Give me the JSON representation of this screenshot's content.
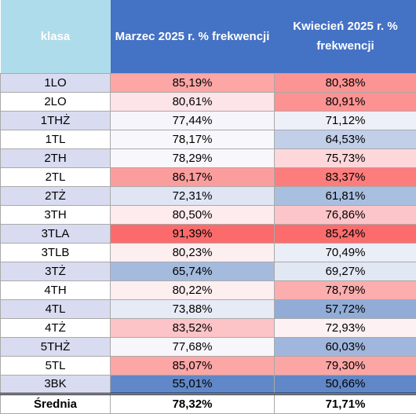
{
  "table": {
    "headers": {
      "klasa": "klasa",
      "marzec": "Marzec 2025 r. % frekwencji",
      "kwiecien": "Kwiecień 2025 r. % frekwencji"
    },
    "rows": [
      {
        "klasa": "1LO",
        "marzec": "85,19%",
        "kwiecien": "80,38%",
        "marzec_color": "#fda6a6",
        "kwiecien_color": "#fc9494"
      },
      {
        "klasa": "2LO",
        "marzec": "80,61%",
        "kwiecien": "80,91%",
        "marzec_color": "#fde4e8",
        "kwiecien_color": "#fc9292"
      },
      {
        "klasa": "1THŻ",
        "marzec": "77,44%",
        "kwiecien": "71,12%",
        "marzec_color": "#f5f5fb",
        "kwiecien_color": "#eef0f8"
      },
      {
        "klasa": "1TL",
        "marzec": "78,17%",
        "kwiecien": "64,53%",
        "marzec_color": "#f8f8fc",
        "kwiecien_color": "#c1cfe9"
      },
      {
        "klasa": "2TH",
        "marzec": "78,29%",
        "kwiecien": "75,73%",
        "marzec_color": "#f8f8fc",
        "kwiecien_color": "#fdd7da"
      },
      {
        "klasa": "2TL",
        "marzec": "86,17%",
        "kwiecien": "83,37%",
        "marzec_color": "#fc9d9d",
        "kwiecien_color": "#fd7d7d"
      },
      {
        "klasa": "2TŻ",
        "marzec": "72,31%",
        "kwiecien": "61,81%",
        "marzec_color": "#dfe5f3",
        "kwiecien_color": "#a9bfe0"
      },
      {
        "klasa": "3TH",
        "marzec": "80,50%",
        "kwiecien": "76,86%",
        "marzec_color": "#fdebee",
        "kwiecien_color": "#fcc5c9"
      },
      {
        "klasa": "3TLA",
        "marzec": "91,39%",
        "kwiecien": "85,24%",
        "marzec_color": "#fb6b6b",
        "kwiecien_color": "#fd6c6c"
      },
      {
        "klasa": "3TLB",
        "marzec": "80,23%",
        "kwiecien": "70,49%",
        "marzec_color": "#fdeef0",
        "kwiecien_color": "#eaeef7"
      },
      {
        "klasa": "3TŻ",
        "marzec": "65,74%",
        "kwiecien": "69,27%",
        "marzec_color": "#a4bbde",
        "kwiecien_color": "#e2e7f4"
      },
      {
        "klasa": "4TH",
        "marzec": "80,22%",
        "kwiecien": "78,79%",
        "marzec_color": "#fdeef0",
        "kwiecien_color": "#fcaeae"
      },
      {
        "klasa": "4TL",
        "marzec": "73,88%",
        "kwiecien": "57,72%",
        "marzec_color": "#e7ebf6",
        "kwiecien_color": "#91acd6"
      },
      {
        "klasa": "4TŻ",
        "marzec": "83,52%",
        "kwiecien": "72,93%",
        "marzec_color": "#fcc4c7",
        "kwiecien_color": "#fdf1f3"
      },
      {
        "klasa": "5THŻ",
        "marzec": "77,68%",
        "kwiecien": "60,03%",
        "marzec_color": "#f6f6fb",
        "kwiecien_color": "#a0b6dc"
      },
      {
        "klasa": "5TL",
        "marzec": "85,07%",
        "kwiecien": "79,30%",
        "marzec_color": "#fca6a6",
        "kwiecien_color": "#fca5a5"
      },
      {
        "klasa": "3BK",
        "marzec": "55,01%",
        "kwiecien": "50,66%",
        "marzec_color": "#6088c8",
        "kwiecien_color": "#6088c8"
      }
    ],
    "average": {
      "klasa": "Średnia",
      "marzec": "78,32%",
      "kwiecien": "71,71%"
    }
  }
}
